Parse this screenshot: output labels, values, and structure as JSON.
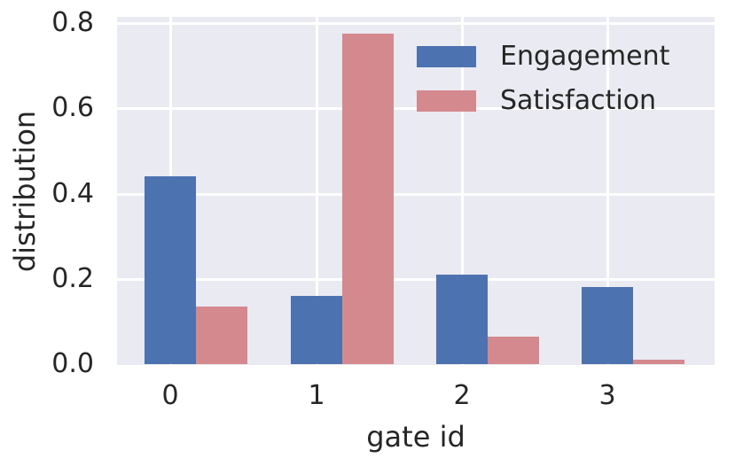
{
  "chart_data": {
    "type": "bar",
    "title": "",
    "xlabel": "gate id",
    "ylabel": "distribution",
    "categories": [
      "0",
      "1",
      "2",
      "3"
    ],
    "series": [
      {
        "name": "Engagement",
        "color": "#4c72b0",
        "values": [
          0.44,
          0.16,
          0.21,
          0.18
        ]
      },
      {
        "name": "Satisfaction",
        "color": "#d4898e",
        "values": [
          0.135,
          0.776,
          0.065,
          0.01
        ]
      }
    ],
    "ylim": [
      0,
      0.82
    ],
    "yticks": [
      "0.0",
      "0.2",
      "0.4",
      "0.6",
      "0.8"
    ],
    "grid": true,
    "legend_position": "upper right"
  }
}
